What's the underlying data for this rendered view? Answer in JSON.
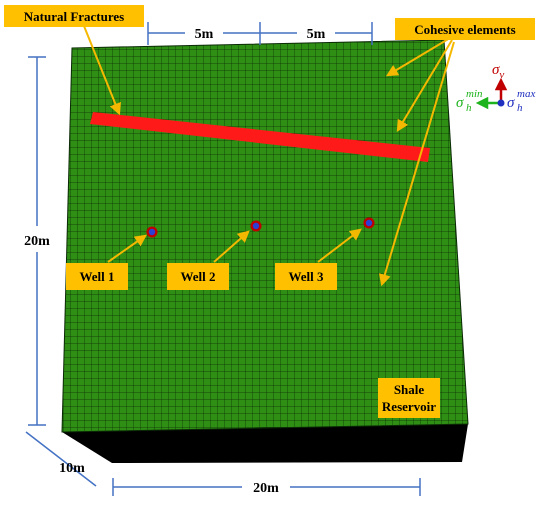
{
  "callouts": {
    "natural_fractures": "Natural Fractures",
    "cohesive_elements": "Cohesive elements",
    "well_1": "Well 1",
    "well_2": "Well 2",
    "well_3": "Well 3",
    "shale_line1": "Shale",
    "shale_line2": "Reservoir"
  },
  "dimensions": {
    "top_left": "5m",
    "top_right": "5m",
    "height": "20m",
    "depth": "10m",
    "width": "20m"
  },
  "stress_axes": {
    "sigma_v": "σ",
    "sigma_v_sub": "v",
    "sigma_h_min": "σ",
    "sigma_h_min_sub": "h",
    "sigma_h_min_sup": "min",
    "sigma_h_max": "σ",
    "sigma_h_max_sub": "h",
    "sigma_h_max_sup": "max"
  },
  "colors": {
    "mesh_fill": "#2f8f14",
    "mesh_line": "#0b2a06",
    "fracture": "#ff1a1a",
    "callout_box": "#ffc000",
    "arrow": "#f5b800",
    "dimension_line": "#4472c4",
    "well_outer": "#c00000",
    "well_inner": "#2b3fd6",
    "base": "#000000",
    "sigma_v": "#c00000",
    "sigma_h_min": "#1db31d",
    "sigma_h_max": "#1f2fbf"
  }
}
